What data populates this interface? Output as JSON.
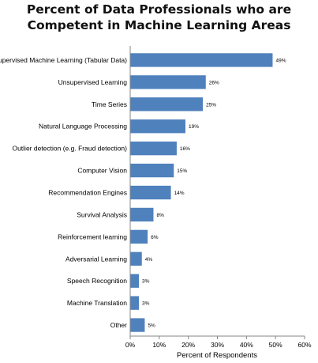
{
  "chart_data": {
    "type": "bar",
    "orientation": "horizontal",
    "title_lines": [
      "Percent of Data Professionals who are",
      "Competent in Machine Learning Areas"
    ],
    "categories": [
      "Supervised Machine Learning (Tabular Data)",
      "Unsupervised Learning",
      "Time Series",
      "Natural Language Processing",
      "Outlier detection (e.g. Fraud detection)",
      "Computer Vision",
      "Recommendation Engines",
      "Survival Analysis",
      "Reinforcement learning",
      "Adversarial Learning",
      "Speech Recognition",
      "Machine Translation",
      "Other"
    ],
    "values": [
      49,
      26,
      25,
      19,
      16,
      15,
      14,
      8,
      6,
      4,
      3,
      3,
      5
    ],
    "value_labels": [
      "49%",
      "26%",
      "25%",
      "19%",
      "16%",
      "15%",
      "14%",
      "8%",
      "6%",
      "4%",
      "3%",
      "3%",
      "5%"
    ],
    "xlabel": "Percent of Respondents",
    "xlim": [
      0,
      60
    ],
    "xticks": [
      0,
      10,
      20,
      30,
      40,
      50,
      60
    ],
    "xtick_labels": [
      "0%",
      "10%",
      "20%",
      "30%",
      "40%",
      "50%",
      "60%"
    ],
    "bar_color": "#4f81bd",
    "grid": false,
    "legend": "none"
  }
}
